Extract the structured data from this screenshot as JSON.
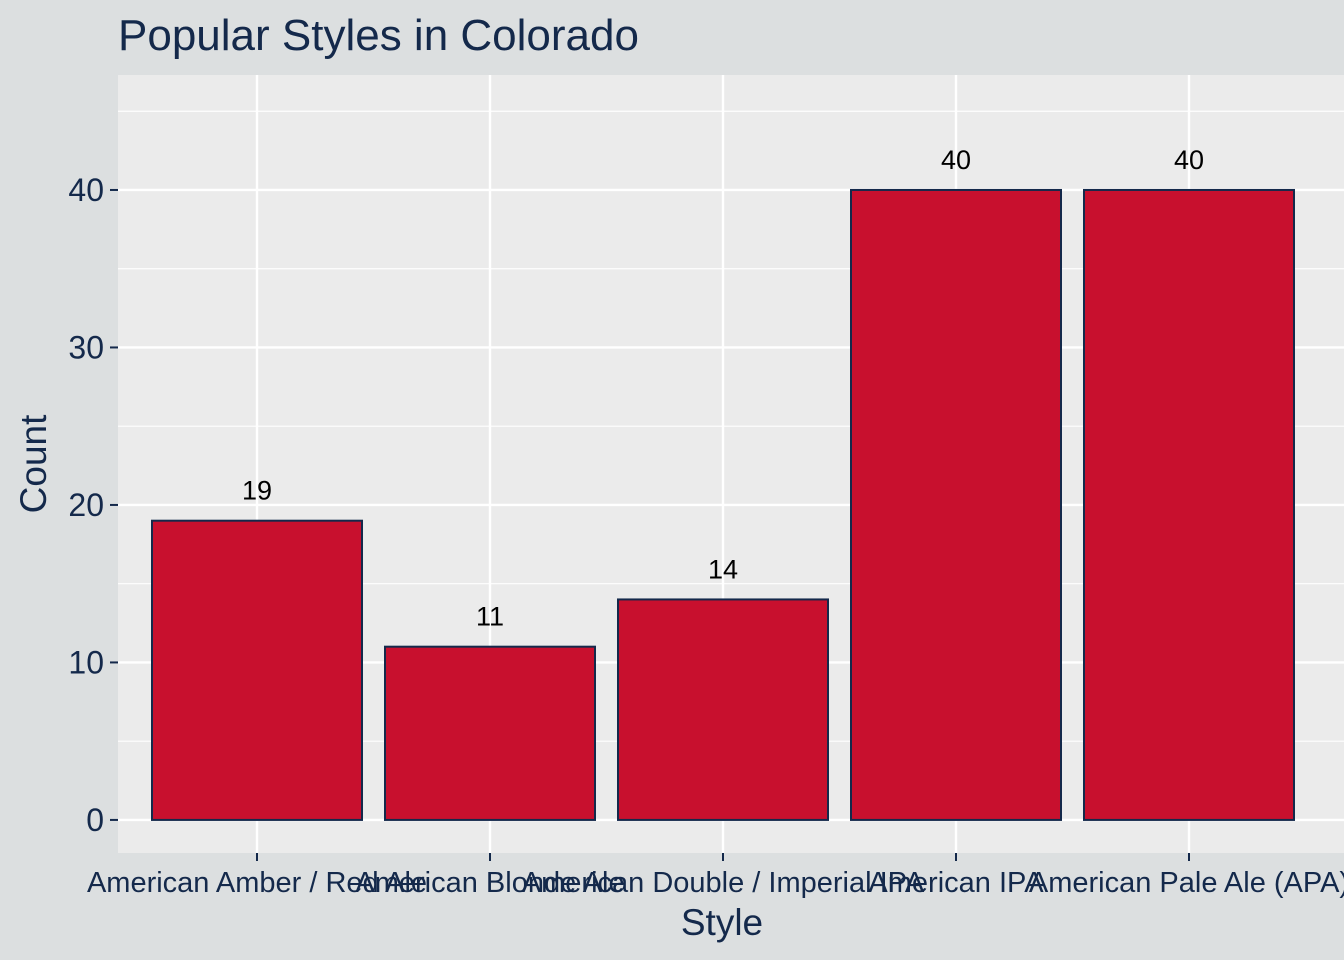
{
  "chart_data": {
    "type": "bar",
    "title": "Popular Styles in Colorado",
    "xlabel": "Style",
    "ylabel": "Count",
    "categories": [
      "American Amber / Red Ale",
      "American Blonde Ale",
      "American Double / Imperial IPA",
      "American IPA",
      "American Pale Ale (APA)"
    ],
    "values": [
      19,
      11,
      14,
      40,
      40
    ],
    "data_labels": [
      "19",
      "11",
      "14",
      "40",
      "40"
    ],
    "yticks": [
      0,
      10,
      20,
      30,
      40
    ],
    "ytick_labels": [
      "0",
      "10",
      "20",
      "30",
      "40"
    ],
    "ylim": [
      -2.1,
      47.3
    ],
    "grid": true,
    "legend": "none",
    "colors": {
      "bar_fill": "#c8102e",
      "bar_stroke": "#14294b",
      "panel": "#ebebeb",
      "page": "#dcdfe0",
      "grid": "#ffffff",
      "text": "#14294b"
    }
  }
}
